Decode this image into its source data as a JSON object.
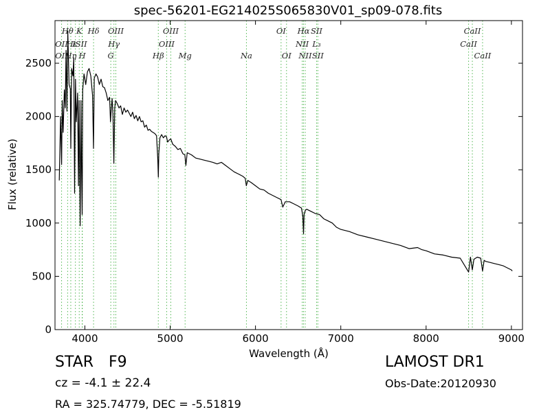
{
  "chart_data": {
    "type": "line",
    "title": "spec-56201-EG214025S065830V01_sp09-078.fits",
    "xlabel": "Wavelength (Å)",
    "ylabel": "Flux (relative)",
    "xlim": [
      3650,
      9130
    ],
    "ylim": [
      0,
      2900
    ],
    "xticks": [
      4000,
      5000,
      6000,
      7000,
      8000,
      9000
    ],
    "yticks": [
      0,
      500,
      1000,
      1500,
      2000,
      2500
    ],
    "grid": false,
    "series": [
      {
        "color": "#000000",
        "x": [
          3700,
          3715,
          3727,
          3735,
          3745,
          3760,
          3770,
          3780,
          3790,
          3800,
          3815,
          3830,
          3835,
          3845,
          3860,
          3870,
          3880,
          3890,
          3900,
          3915,
          3925,
          3933,
          3945,
          3955,
          3960,
          3968,
          3975,
          3990,
          4010,
          4030,
          4050,
          4070,
          4090,
          4101,
          4110,
          4130,
          4150,
          4170,
          4190,
          4210,
          4230,
          4250,
          4270,
          4290,
          4300,
          4308,
          4320,
          4330,
          4340,
          4350,
          4360,
          4380,
          4400,
          4420,
          4440,
          4460,
          4480,
          4500,
          4520,
          4540,
          4560,
          4580,
          4600,
          4620,
          4640,
          4660,
          4680,
          4700,
          4720,
          4740,
          4760,
          4780,
          4800,
          4820,
          4840,
          4855,
          4861,
          4867,
          4880,
          4900,
          4920,
          4940,
          4957,
          4970,
          4990,
          5007,
          5030,
          5060,
          5090,
          5120,
          5150,
          5172,
          5184,
          5200,
          5250,
          5300,
          5350,
          5400,
          5450,
          5500,
          5550,
          5600,
          5650,
          5700,
          5750,
          5800,
          5850,
          5880,
          5893,
          5910,
          5950,
          6000,
          6050,
          6100,
          6150,
          6200,
          6250,
          6300,
          6320,
          6350,
          6400,
          6450,
          6500,
          6540,
          6555,
          6563,
          6570,
          6585,
          6600,
          6650,
          6700,
          6750,
          6800,
          6850,
          6900,
          6950,
          7000,
          7100,
          7200,
          7300,
          7400,
          7500,
          7600,
          7700,
          7800,
          7900,
          7950,
          8000,
          8100,
          8200,
          8300,
          8400,
          8498,
          8520,
          8542,
          8560,
          8600,
          8640,
          8662,
          8680,
          8700,
          8750,
          8800,
          8850,
          8900,
          8950,
          9000,
          9010
        ],
        "y": [
          1400,
          2000,
          1550,
          2150,
          1850,
          2250,
          2080,
          2620,
          2050,
          2800,
          2300,
          2260,
          1700,
          2450,
          2380,
          2550,
          1280,
          2350,
          1950,
          2220,
          1350,
          2150,
          975,
          2150,
          1580,
          1080,
          2250,
          2400,
          2300,
          2420,
          2450,
          2380,
          2200,
          1700,
          2360,
          2400,
          2370,
          2300,
          2350,
          2280,
          2270,
          2220,
          2150,
          2180,
          1950,
          2050,
          2170,
          2000,
          1560,
          2080,
          2150,
          2120,
          2080,
          2100,
          2020,
          2080,
          2040,
          2060,
          2030,
          2000,
          2040,
          1980,
          2010,
          1960,
          2000,
          1950,
          1960,
          1900,
          1920,
          1870,
          1880,
          1860,
          1850,
          1840,
          1820,
          1600,
          1430,
          1650,
          1800,
          1830,
          1800,
          1820,
          1810,
          1760,
          1780,
          1790,
          1740,
          1720,
          1690,
          1700,
          1650,
          1640,
          1540,
          1660,
          1640,
          1610,
          1600,
          1590,
          1580,
          1570,
          1555,
          1570,
          1540,
          1510,
          1480,
          1460,
          1440,
          1420,
          1350,
          1400,
          1380,
          1350,
          1320,
          1310,
          1280,
          1260,
          1240,
          1220,
          1150,
          1200,
          1200,
          1180,
          1160,
          1140,
          1060,
          900,
          1080,
          1120,
          1130,
          1110,
          1090,
          1080,
          1040,
          1020,
          1000,
          960,
          940,
          920,
          890,
          870,
          850,
          830,
          810,
          790,
          760,
          770,
          750,
          740,
          710,
          700,
          680,
          670,
          540,
          680,
          560,
          660,
          680,
          670,
          550,
          650,
          640,
          630,
          620,
          610,
          600,
          580,
          560,
          550
        ]
      }
    ],
    "lines": [
      {
        "label": "OII",
        "x": 3727
      },
      {
        "label": "Hθ",
        "x": 3798
      },
      {
        "label": "Hη",
        "x": 3835
      },
      {
        "label": "Hζ",
        "x": 3889
      },
      {
        "label": "Hε",
        "x": 3970
      },
      {
        "label": "K",
        "x": 3934
      },
      {
        "label": "H",
        "x": 3969
      },
      {
        "label": "Hδ",
        "x": 4102
      },
      {
        "label": "G",
        "x": 4304
      },
      {
        "label": "Hγ",
        "x": 4341
      },
      {
        "label": "OIII",
        "x": 4363
      },
      {
        "label": "Hβ",
        "x": 4861
      },
      {
        "label": "OIII",
        "x": 4959
      },
      {
        "label": "OIII",
        "x": 5007
      },
      {
        "label": "Mg",
        "x": 5175
      },
      {
        "label": "Na",
        "x": 5894
      },
      {
        "label": "OI",
        "x": 6300
      },
      {
        "label": "OI",
        "x": 6364
      },
      {
        "label": "NII",
        "x": 6548
      },
      {
        "label": "Hα",
        "x": 6563
      },
      {
        "label": "NII",
        "x": 6583
      },
      {
        "label": "SII",
        "x": 6716
      },
      {
        "label": "SII",
        "x": 6731
      },
      {
        "label": "CaII",
        "x": 8498
      },
      {
        "label": "CaII",
        "x": 8542
      },
      {
        "label": "CaII",
        "x": 8662
      }
    ],
    "line_labels": [
      {
        "text": "Hθ",
        "x": 3798,
        "row": 0
      },
      {
        "text": "K",
        "x": 3934,
        "row": 0
      },
      {
        "text": "Hδ",
        "x": 4102,
        "row": 0
      },
      {
        "text": "OIII",
        "x": 4363,
        "row": 0
      },
      {
        "text": "OIII",
        "x": 5007,
        "row": 0
      },
      {
        "text": "OI",
        "x": 6300,
        "row": 0
      },
      {
        "text": "Hα",
        "x": 6563,
        "row": 0
      },
      {
        "text": "SII",
        "x": 6716,
        "row": 0
      },
      {
        "text": "CaII",
        "x": 8542,
        "row": 0
      },
      {
        "text": "OII",
        "x": 3727,
        "row": 1
      },
      {
        "text": "Hε",
        "x": 3850,
        "row": 1
      },
      {
        "text": "ISII",
        "x": 3940,
        "row": 1
      },
      {
        "text": "Hγ",
        "x": 4341,
        "row": 1
      },
      {
        "text": "OIII",
        "x": 4959,
        "row": 1
      },
      {
        "text": "NII",
        "x": 6548,
        "row": 1
      },
      {
        "text": "L₃",
        "x": 6716,
        "row": 1
      },
      {
        "text": "CaII",
        "x": 8498,
        "row": 1
      },
      {
        "text": "OII",
        "x": 3727,
        "row": 2
      },
      {
        "text": "Hη",
        "x": 3835,
        "row": 2
      },
      {
        "text": "H",
        "x": 3969,
        "row": 2
      },
      {
        "text": "G",
        "x": 4304,
        "row": 2
      },
      {
        "text": "Hβ",
        "x": 4861,
        "row": 2
      },
      {
        "text": "Mg",
        "x": 5175,
        "row": 2
      },
      {
        "text": "Na",
        "x": 5894,
        "row": 2
      },
      {
        "text": "OI",
        "x": 6364,
        "row": 2
      },
      {
        "text": "NII",
        "x": 6583,
        "row": 2
      },
      {
        "text": "SII",
        "x": 6731,
        "row": 2
      },
      {
        "text": "CaII",
        "x": 8662,
        "row": 2
      }
    ],
    "line_color": "#33aa33"
  },
  "info": {
    "class_text": "STAR",
    "subclass_text": "F9",
    "cz_text": "cz = -4.1  ± 22.4",
    "radec_text": "RA = 325.74779, DEC = -5.51819",
    "survey_text": "LAMOST DR1",
    "obsdate_text": "Obs-Date:20120930"
  }
}
